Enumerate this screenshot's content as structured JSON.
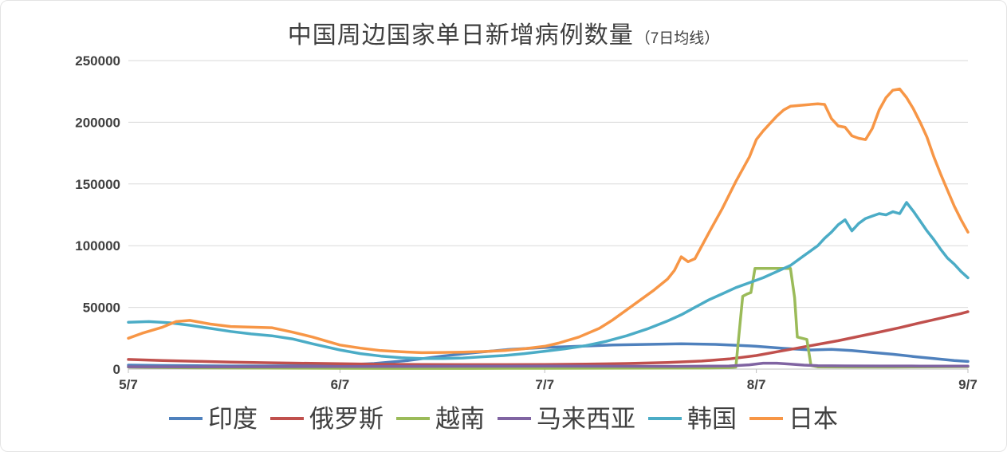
{
  "chart_data": {
    "type": "line",
    "title": "中国周边国家单日新增病例数量",
    "subtitle": "（7日均线）",
    "grid": true,
    "legend_position": "bottom",
    "x_axis": {
      "range": [
        0,
        123
      ],
      "ticks": [
        {
          "pos": 0,
          "label": "5/7"
        },
        {
          "pos": 31,
          "label": "6/7"
        },
        {
          "pos": 61,
          "label": "7/7"
        },
        {
          "pos": 92,
          "label": "8/7"
        },
        {
          "pos": 123,
          "label": "9/7"
        }
      ]
    },
    "y_axis": {
      "range": [
        0,
        250000
      ],
      "ticks": [
        0,
        50000,
        100000,
        150000,
        200000,
        250000
      ]
    },
    "series": [
      {
        "id": "india",
        "name": "印度",
        "color": "#4F81BD",
        "points": [
          [
            0,
            3200
          ],
          [
            5,
            2900
          ],
          [
            10,
            2700
          ],
          [
            15,
            2500
          ],
          [
            20,
            2500
          ],
          [
            25,
            2700
          ],
          [
            31,
            3200
          ],
          [
            36,
            4500
          ],
          [
            41,
            7000
          ],
          [
            46,
            10500
          ],
          [
            51,
            13500
          ],
          [
            56,
            16000
          ],
          [
            61,
            17500
          ],
          [
            66,
            18500
          ],
          [
            71,
            19500
          ],
          [
            76,
            20000
          ],
          [
            81,
            20500
          ],
          [
            86,
            20000
          ],
          [
            91,
            18800
          ],
          [
            92,
            18500
          ],
          [
            96,
            16800
          ],
          [
            100,
            15500
          ],
          [
            103,
            16000
          ],
          [
            106,
            15000
          ],
          [
            109,
            13500
          ],
          [
            112,
            12000
          ],
          [
            115,
            10200
          ],
          [
            118,
            8500
          ],
          [
            121,
            7000
          ],
          [
            123,
            6200
          ]
        ]
      },
      {
        "id": "russia",
        "name": "俄罗斯",
        "color": "#C0504D",
        "points": [
          [
            0,
            7800
          ],
          [
            5,
            7000
          ],
          [
            10,
            6300
          ],
          [
            15,
            5700
          ],
          [
            20,
            5200
          ],
          [
            25,
            4800
          ],
          [
            31,
            4300
          ],
          [
            37,
            3900
          ],
          [
            43,
            3700
          ],
          [
            49,
            3600
          ],
          [
            55,
            3600
          ],
          [
            61,
            3700
          ],
          [
            67,
            4000
          ],
          [
            73,
            4500
          ],
          [
            79,
            5300
          ],
          [
            84,
            6500
          ],
          [
            88,
            8200
          ],
          [
            92,
            11000
          ],
          [
            95,
            14000
          ],
          [
            98,
            17000
          ],
          [
            101,
            20000
          ],
          [
            104,
            23000
          ],
          [
            107,
            26500
          ],
          [
            110,
            30000
          ],
          [
            113,
            33500
          ],
          [
            116,
            37500
          ],
          [
            118,
            40000
          ],
          [
            120,
            42500
          ],
          [
            122,
            45000
          ],
          [
            123,
            46500
          ]
        ]
      },
      {
        "id": "vietnam",
        "name": "越南",
        "color": "#9BBB59",
        "points": [
          [
            0,
            1600
          ],
          [
            5,
            1300
          ],
          [
            10,
            1000
          ],
          [
            15,
            900
          ],
          [
            20,
            800
          ],
          [
            25,
            700
          ],
          [
            31,
            650
          ],
          [
            40,
            600
          ],
          [
            50,
            600
          ],
          [
            61,
            650
          ],
          [
            70,
            700
          ],
          [
            80,
            800
          ],
          [
            85,
            900
          ],
          [
            88,
            1200
          ],
          [
            89,
            1600
          ],
          [
            90,
            59000
          ],
          [
            90.7,
            61000
          ],
          [
            91.2,
            62000
          ],
          [
            91.8,
            81500
          ],
          [
            97,
            81500
          ],
          [
            97.6,
            58000
          ],
          [
            98,
            26000
          ],
          [
            99.4,
            24000
          ],
          [
            100,
            3000
          ],
          [
            101,
            1800
          ],
          [
            106,
            1700
          ],
          [
            112,
            1700
          ],
          [
            118,
            1850
          ],
          [
            123,
            2000
          ]
        ]
      },
      {
        "id": "malaysia",
        "name": "马来西亚",
        "color": "#8064A2",
        "points": [
          [
            0,
            1900
          ],
          [
            10,
            1800
          ],
          [
            20,
            1900
          ],
          [
            31,
            2100
          ],
          [
            40,
            2200
          ],
          [
            50,
            2300
          ],
          [
            61,
            2400
          ],
          [
            70,
            2300
          ],
          [
            80,
            2200
          ],
          [
            88,
            2500
          ],
          [
            91,
            3500
          ],
          [
            93,
            4800
          ],
          [
            95,
            4800
          ],
          [
            97,
            4000
          ],
          [
            99,
            3200
          ],
          [
            101,
            2800
          ],
          [
            105,
            2600
          ],
          [
            110,
            2500
          ],
          [
            116,
            2450
          ],
          [
            123,
            2400
          ]
        ]
      },
      {
        "id": "south-korea",
        "name": "韩国",
        "color": "#4BACC6",
        "points": [
          [
            0,
            38000
          ],
          [
            3,
            38500
          ],
          [
            6,
            37500
          ],
          [
            9,
            35500
          ],
          [
            12,
            33000
          ],
          [
            15,
            30500
          ],
          [
            18,
            28500
          ],
          [
            21,
            27000
          ],
          [
            24,
            24500
          ],
          [
            27,
            20500
          ],
          [
            31,
            15500
          ],
          [
            34,
            12500
          ],
          [
            37,
            10500
          ],
          [
            40,
            9200
          ],
          [
            43,
            8600
          ],
          [
            46,
            8500
          ],
          [
            49,
            9000
          ],
          [
            52,
            10000
          ],
          [
            55,
            11000
          ],
          [
            58,
            12500
          ],
          [
            61,
            14500
          ],
          [
            64,
            16500
          ],
          [
            67,
            19000
          ],
          [
            70,
            22500
          ],
          [
            73,
            27000
          ],
          [
            76,
            32500
          ],
          [
            79,
            39000
          ],
          [
            81,
            44000
          ],
          [
            83,
            50000
          ],
          [
            85,
            56000
          ],
          [
            87,
            61000
          ],
          [
            89,
            66000
          ],
          [
            91,
            70000
          ],
          [
            93,
            74000
          ],
          [
            95,
            79000
          ],
          [
            97,
            84000
          ],
          [
            99,
            92000
          ],
          [
            101,
            100000
          ],
          [
            102,
            106000
          ],
          [
            103,
            111000
          ],
          [
            104,
            117000
          ],
          [
            105,
            121000
          ],
          [
            106,
            112000
          ],
          [
            107,
            118000
          ],
          [
            108,
            122000
          ],
          [
            109,
            124000
          ],
          [
            110,
            126000
          ],
          [
            111,
            125000
          ],
          [
            112,
            127500
          ],
          [
            113,
            126000
          ],
          [
            114,
            135000
          ],
          [
            115,
            128000
          ],
          [
            116,
            120000
          ],
          [
            117,
            112000
          ],
          [
            118,
            105000
          ],
          [
            119,
            97000
          ],
          [
            120,
            90000
          ],
          [
            121,
            85000
          ],
          [
            122,
            79000
          ],
          [
            123,
            74000
          ]
        ]
      },
      {
        "id": "japan",
        "name": "日本",
        "color": "#F79646",
        "points": [
          [
            0,
            25000
          ],
          [
            2,
            29000
          ],
          [
            5,
            34000
          ],
          [
            7,
            38500
          ],
          [
            9,
            39500
          ],
          [
            12,
            36500
          ],
          [
            15,
            34500
          ],
          [
            18,
            34000
          ],
          [
            21,
            33500
          ],
          [
            24,
            30000
          ],
          [
            27,
            26000
          ],
          [
            31,
            19500
          ],
          [
            34,
            17000
          ],
          [
            37,
            15000
          ],
          [
            40,
            14000
          ],
          [
            43,
            13300
          ],
          [
            46,
            13500
          ],
          [
            49,
            13700
          ],
          [
            52,
            14200
          ],
          [
            55,
            15000
          ],
          [
            58,
            16500
          ],
          [
            61,
            18500
          ],
          [
            63,
            21000
          ],
          [
            66,
            26000
          ],
          [
            69,
            33000
          ],
          [
            71,
            40000
          ],
          [
            73,
            48000
          ],
          [
            75,
            56000
          ],
          [
            77,
            64000
          ],
          [
            79,
            73000
          ],
          [
            80,
            80000
          ],
          [
            81,
            91000
          ],
          [
            82,
            87000
          ],
          [
            83,
            89500
          ],
          [
            85,
            110000
          ],
          [
            87,
            130000
          ],
          [
            89,
            152000
          ],
          [
            91,
            172000
          ],
          [
            92,
            186000
          ],
          [
            93,
            193000
          ],
          [
            94,
            199000
          ],
          [
            95,
            205000
          ],
          [
            96,
            210000
          ],
          [
            97,
            213000
          ],
          [
            99,
            214000
          ],
          [
            101,
            215000
          ],
          [
            102,
            214500
          ],
          [
            103,
            203000
          ],
          [
            104,
            197000
          ],
          [
            105,
            196000
          ],
          [
            106,
            189000
          ],
          [
            107,
            187000
          ],
          [
            108,
            186000
          ],
          [
            109,
            195000
          ],
          [
            110,
            210000
          ],
          [
            111,
            220000
          ],
          [
            112,
            226000
          ],
          [
            113,
            227000
          ],
          [
            114,
            220000
          ],
          [
            115,
            211000
          ],
          [
            116,
            200000
          ],
          [
            117,
            188000
          ],
          [
            118,
            172000
          ],
          [
            119,
            158000
          ],
          [
            120,
            145000
          ],
          [
            121,
            132000
          ],
          [
            122,
            121000
          ],
          [
            123,
            111000
          ]
        ]
      }
    ]
  }
}
